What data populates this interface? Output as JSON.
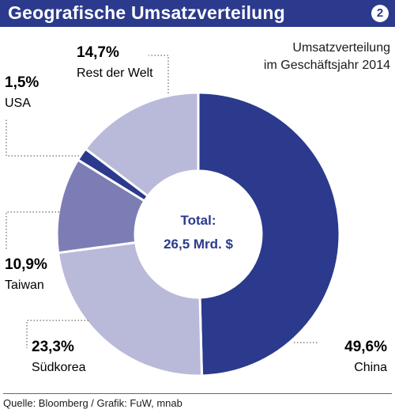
{
  "header": {
    "title": "Geografische Umsatzverteilung",
    "badge": "2"
  },
  "subtitle": {
    "line1": "Umsatzverteilung",
    "line2": "im Geschäftsjahr 2014"
  },
  "center": {
    "line1": "Total:",
    "line2": "26,5 Mrd. $"
  },
  "source": "Quelle: Bloomberg / Grafik: FuW, mnab",
  "colors": {
    "header": "#2b3a8c",
    "dark": "#2b3a8c",
    "medium": "#7d7db6",
    "light": "#b9b9d9"
  },
  "chart_data": {
    "type": "pie",
    "donut": true,
    "slices": [
      {
        "label": "China",
        "value": 49.6,
        "value_label": "49,6%",
        "color": "#2b3a8c"
      },
      {
        "label": "Südkorea",
        "value": 23.3,
        "value_label": "23,3%",
        "color": "#b9b9d9"
      },
      {
        "label": "Taiwan",
        "value": 10.9,
        "value_label": "10,9%",
        "color": "#7d7db6"
      },
      {
        "label": "USA",
        "value": 1.5,
        "value_label": "1,5%",
        "color": "#2b3a8c"
      },
      {
        "label": "Rest der Welt",
        "value": 14.7,
        "value_label": "14,7%",
        "color": "#b9b9d9"
      }
    ]
  }
}
